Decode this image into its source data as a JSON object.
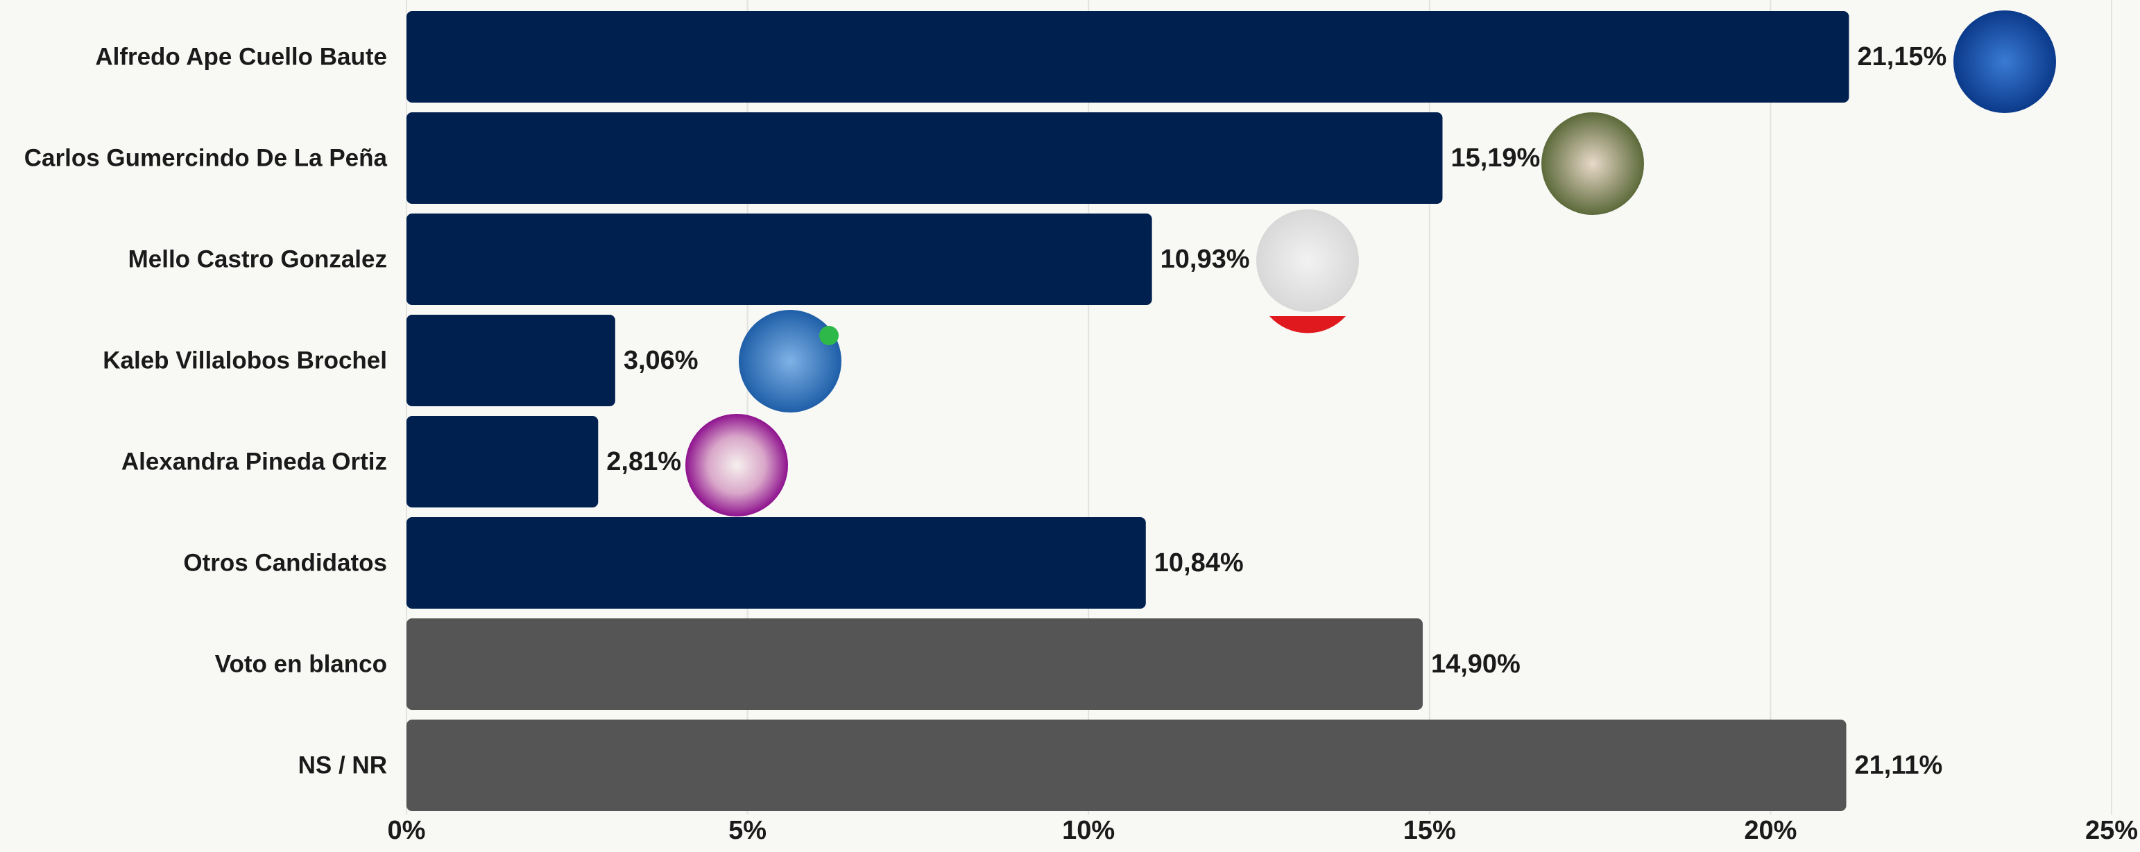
{
  "chart_data": {
    "type": "bar",
    "orientation": "horizontal",
    "categories": [
      "Alfredo Ape Cuello Baute",
      "Carlos Gumercindo De La Peña",
      "Mello Castro Gonzalez",
      "Kaleb Villalobos Brochel",
      "Alexandra Pineda Ortiz",
      "Otros Candidatos",
      "Voto en blanco",
      "NS / NR"
    ],
    "values": [
      21.15,
      15.19,
      10.93,
      3.06,
      2.81,
      10.84,
      14.9,
      21.11
    ],
    "value_labels": [
      "21,15%",
      "15,19%",
      "10,93%",
      "3,06%",
      "2,81%",
      "10,84%",
      "14,90%",
      "21,11%"
    ],
    "colors": [
      "#002050",
      "#002050",
      "#002050",
      "#002050",
      "#002050",
      "#002050",
      "#555555",
      "#555555"
    ],
    "xlim": [
      0,
      25
    ],
    "xticks": [
      {
        "value": 0,
        "label": "0%"
      },
      {
        "value": 5,
        "label": "5%"
      },
      {
        "value": 10,
        "label": "10%"
      },
      {
        "value": 15,
        "label": "15%"
      },
      {
        "value": 20,
        "label": "20%"
      },
      {
        "value": 25,
        "label": "25%"
      }
    ],
    "grid": true
  }
}
